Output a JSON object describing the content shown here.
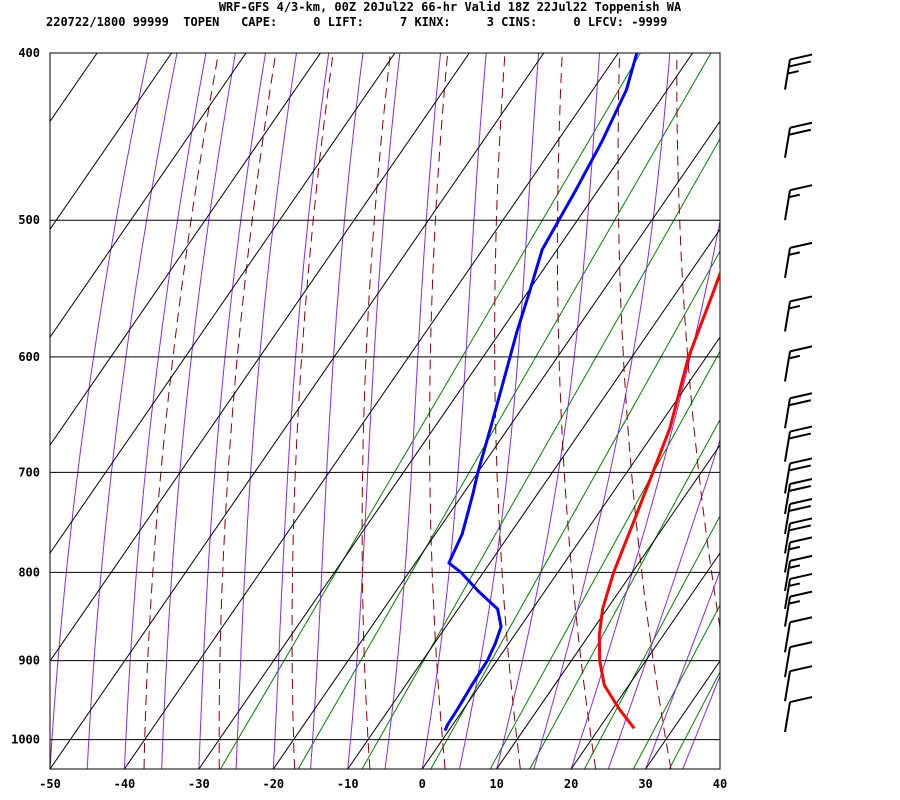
{
  "header": {
    "title": "WRF-GFS 4/3-km, 00Z 20Jul22 66-hr Valid 18Z 22Jul22 Toppenish WA",
    "stats": "220722/1800 99999  TOPEN   CAPE:     0 LIFT:     7 KINX:     3 CINS:     0 LFCV: -9999"
  },
  "colors": {
    "temperature": "#ff0000",
    "dewpoint": "#0000ff",
    "isotherm": "#000000",
    "dry_adiabat": "#8b0000",
    "moist_adiabat": "#8a2be2",
    "mixing_ratio": "#008000",
    "wind_barb": "#000000"
  },
  "chart_data": {
    "type": "line",
    "chart_kind": "skew-T log-P sounding",
    "x_axis": {
      "range": [
        -50,
        40
      ],
      "ticks": [
        "-50",
        "-40",
        "-30",
        "-20",
        "-10",
        "0",
        "10",
        "20",
        "30",
        "40"
      ]
    },
    "y_axis": {
      "scale": "log",
      "range": [
        1040,
        400
      ],
      "ticks": [
        "400",
        "500",
        "600",
        "700",
        "800",
        "900",
        "1000"
      ]
    },
    "grid": true,
    "series": [
      {
        "points": [
          [
            400,
            -37.5
          ],
          [
            420,
            -35.5
          ],
          [
            450,
            -34
          ],
          [
            480,
            -33
          ],
          [
            520,
            -32
          ],
          [
            550,
            -29.8
          ],
          [
            580,
            -27.8
          ],
          [
            620,
            -25
          ],
          [
            660,
            -22.4
          ],
          [
            700,
            -20
          ],
          [
            720,
            -18.7
          ],
          [
            760,
            -16.4
          ],
          [
            790,
            -15.5
          ],
          [
            800,
            -13
          ],
          [
            820,
            -9
          ],
          [
            840,
            -4.7
          ],
          [
            860,
            -2.6
          ],
          [
            880,
            -1.8
          ],
          [
            900,
            -1.3
          ],
          [
            930,
            -1.1
          ],
          [
            960,
            -0.8
          ],
          [
            980,
            -0.7
          ],
          [
            988,
            -0.5
          ]
        ]
      },
      {
        "points": [
          [
            405,
            -12.9
          ],
          [
            450,
            -10.7
          ],
          [
            500,
            -8.2
          ],
          [
            550,
            -5.1
          ],
          [
            600,
            -2.4
          ],
          [
            620,
            -1
          ],
          [
            660,
            1.7
          ],
          [
            700,
            3.5
          ],
          [
            750,
            5.6
          ],
          [
            800,
            7.5
          ],
          [
            840,
            9.4
          ],
          [
            870,
            11.4
          ],
          [
            900,
            13.8
          ],
          [
            930,
            16.7
          ],
          [
            960,
            20.9
          ],
          [
            985,
            24.7
          ]
        ]
      }
    ],
    "wind_barbs": [
      {
        "pressure": 990,
        "speed_kt": 10
      },
      {
        "pressure": 950,
        "speed_kt": 10
      },
      {
        "pressure": 920,
        "speed_kt": 10
      },
      {
        "pressure": 890,
        "speed_kt": 10
      },
      {
        "pressure": 860,
        "speed_kt": 15
      },
      {
        "pressure": 840,
        "speed_kt": 15
      },
      {
        "pressure": 820,
        "speed_kt": 15
      },
      {
        "pressure": 800,
        "speed_kt": 15
      },
      {
        "pressure": 780,
        "speed_kt": 20
      },
      {
        "pressure": 760,
        "speed_kt": 20
      },
      {
        "pressure": 740,
        "speed_kt": 20
      },
      {
        "pressure": 720,
        "speed_kt": 20
      },
      {
        "pressure": 690,
        "speed_kt": 20
      },
      {
        "pressure": 660,
        "speed_kt": 20
      },
      {
        "pressure": 620,
        "speed_kt": 15
      },
      {
        "pressure": 580,
        "speed_kt": 15
      },
      {
        "pressure": 540,
        "speed_kt": 15
      },
      {
        "pressure": 500,
        "speed_kt": 15
      },
      {
        "pressure": 460,
        "speed_kt": 20
      },
      {
        "pressure": 420,
        "speed_kt": 25
      }
    ]
  }
}
